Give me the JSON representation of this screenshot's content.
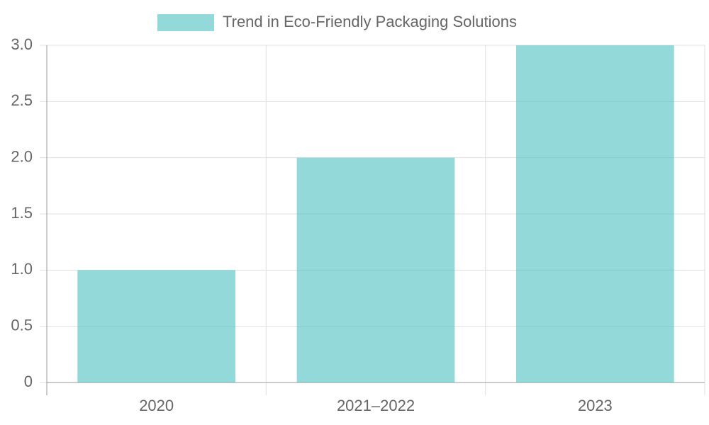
{
  "chart_data": {
    "type": "bar",
    "categories": [
      "2020",
      "2021–2022",
      "2023"
    ],
    "series": [
      {
        "name": "Trend in Eco-Friendly Packaging Solutions",
        "color": "rgba(75,192,192,0.6)",
        "values": [
          1,
          2,
          3
        ]
      }
    ],
    "ylim": [
      0,
      3
    ],
    "yticks": [
      0,
      0.5,
      {
        "value": 1,
        "label": "1.0"
      },
      1.5,
      {
        "value": 2,
        "label": "2.0"
      },
      2.5,
      {
        "value": 3,
        "label": "3.0"
      }
    ],
    "grid": true,
    "legend": "top"
  }
}
